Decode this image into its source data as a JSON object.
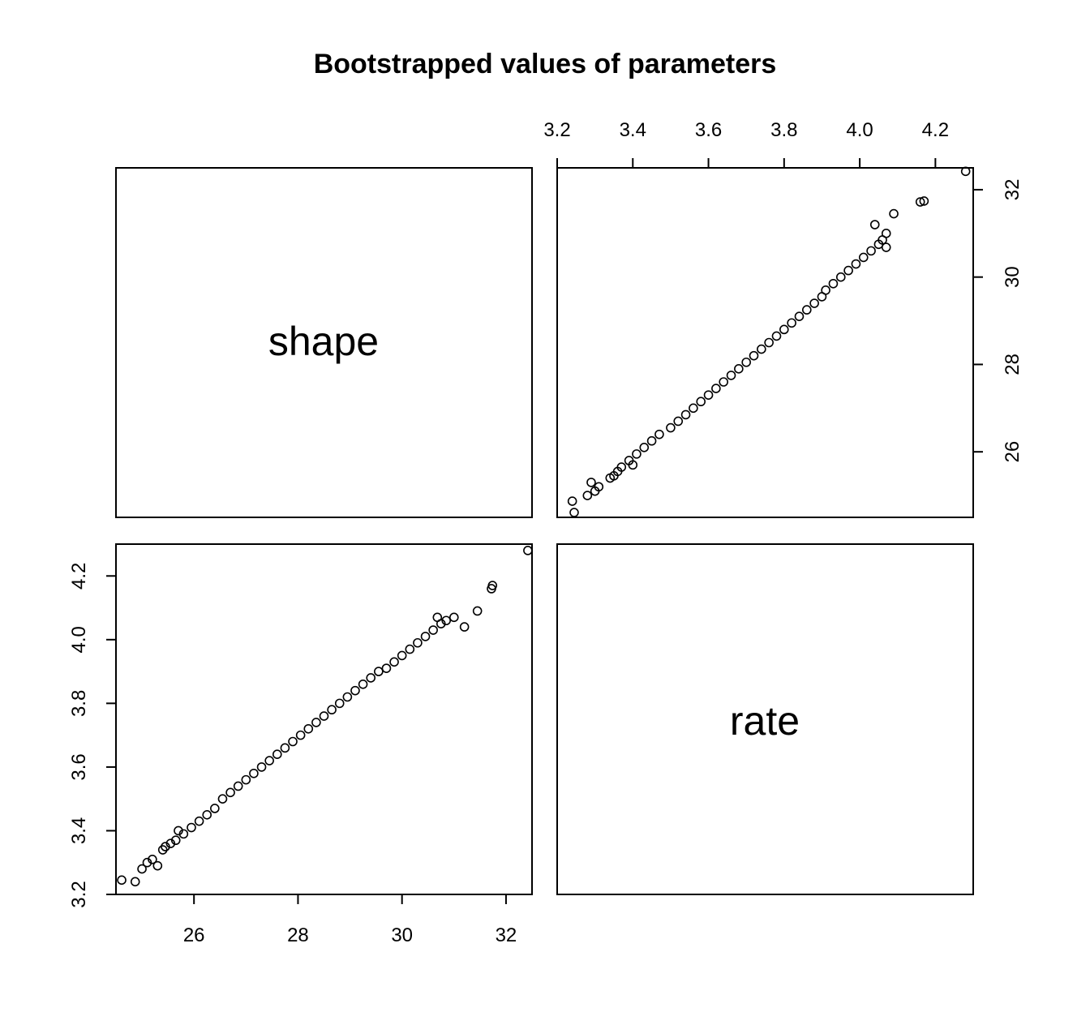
{
  "chart_data": {
    "type": "scatter",
    "title": "Bootstrapped values of parameters",
    "variables": [
      "shape",
      "rate"
    ],
    "axes": {
      "shape": {
        "range": [
          24.5,
          32.5
        ],
        "ticks": [
          26,
          28,
          30,
          32
        ],
        "tick_labels": [
          "26",
          "28",
          "30",
          "32"
        ]
      },
      "rate": {
        "range": [
          3.2,
          4.3
        ],
        "ticks": [
          3.2,
          3.4,
          3.6,
          3.8,
          4.0,
          4.2
        ],
        "tick_labels": [
          "3.2",
          "3.4",
          "3.6",
          "3.8",
          "4.0",
          "4.2"
        ]
      }
    },
    "panels": [
      {
        "position": "top-left",
        "kind": "label",
        "text": "shape"
      },
      {
        "position": "top-right",
        "kind": "scatter",
        "x": "rate",
        "y": "shape"
      },
      {
        "position": "bottom-left",
        "kind": "scatter",
        "x": "shape",
        "y": "rate"
      },
      {
        "position": "bottom-right",
        "kind": "label",
        "text": "rate"
      }
    ],
    "point_marker": "open circle",
    "point_color": "#000000",
    "points": {
      "shape": [
        24.61,
        24.87,
        25.0,
        25.1,
        25.2,
        25.3,
        25.4,
        25.45,
        25.55,
        25.65,
        25.7,
        25.8,
        25.95,
        26.1,
        26.25,
        26.4,
        26.55,
        26.7,
        26.85,
        27.0,
        27.15,
        27.3,
        27.45,
        27.6,
        27.75,
        27.9,
        28.05,
        28.2,
        28.35,
        28.5,
        28.65,
        28.8,
        28.95,
        29.1,
        29.25,
        29.4,
        29.55,
        29.7,
        29.85,
        30.0,
        30.15,
        30.3,
        30.45,
        30.6,
        30.68,
        30.75,
        30.85,
        31.0,
        31.2,
        31.45,
        31.72,
        31.74,
        32.42
      ],
      "rate": [
        3.245,
        3.24,
        3.28,
        3.3,
        3.31,
        3.29,
        3.34,
        3.35,
        3.36,
        3.37,
        3.4,
        3.39,
        3.41,
        3.43,
        3.45,
        3.47,
        3.5,
        3.52,
        3.54,
        3.56,
        3.58,
        3.6,
        3.62,
        3.64,
        3.66,
        3.68,
        3.7,
        3.72,
        3.74,
        3.76,
        3.78,
        3.8,
        3.82,
        3.84,
        3.86,
        3.88,
        3.9,
        3.91,
        3.93,
        3.95,
        3.97,
        3.99,
        4.01,
        4.03,
        4.07,
        4.05,
        4.06,
        4.07,
        4.04,
        4.09,
        4.16,
        4.17,
        4.28
      ]
    }
  }
}
